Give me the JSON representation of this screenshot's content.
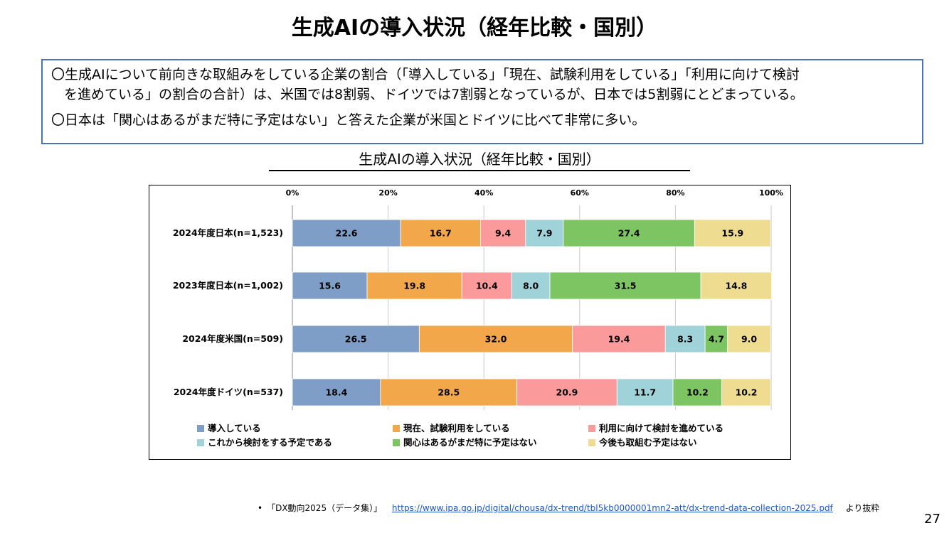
{
  "page": {
    "title": "生成AIの導入状況（経年比較・国別）",
    "page_number": "27"
  },
  "summary": {
    "line1": "〇生成AIについて前向きな取組みをしている企業の割合（「導入している」「現在、試験利用をしている」「利用に向けて検討",
    "line2": "を進めている」の割合の合計）は、米国では8割弱、ドイツでは7割弱となっているが、日本では5割弱にとどまっている。",
    "line3": "〇日本は「関心はあるがまだ特に予定はない」と答えた企業が米国とドイツに比べて非常に多い。"
  },
  "footnote": {
    "prefix": "•　「DX動向2025（データ集）」",
    "link": "https://www.ipa.go.jp/digital/chousa/dx-trend/tbl5kb0000001mn2-att/dx-trend-data-collection-2025.pdf",
    "suffix": "より抜粋"
  },
  "chart_data": {
    "type": "bar",
    "orientation": "horizontal",
    "stacked": true,
    "title": "生成AIの導入状況（経年比較・国別）",
    "xlabel": "",
    "ylabel": "",
    "xlim": [
      0,
      100
    ],
    "x_ticks": [
      "0%",
      "20%",
      "40%",
      "60%",
      "80%",
      "100%"
    ],
    "grid": true,
    "legend_position": "bottom",
    "categories": [
      "2024年度日本(n=1,523)",
      "2023年度日本(n=1,002)",
      "2024年度米国(n=509)",
      "2024年度ドイツ(n=537)"
    ],
    "series": [
      {
        "name": "導入している",
        "color": "#7f9ec7",
        "values": [
          22.6,
          15.6,
          26.5,
          18.4
        ]
      },
      {
        "name": "現在、試験利用をしている",
        "color": "#f3a74b",
        "values": [
          16.7,
          19.8,
          32.0,
          28.5
        ]
      },
      {
        "name": "利用に向けて検討を進めている",
        "color": "#fb9a9a",
        "values": [
          9.4,
          10.4,
          19.4,
          20.9
        ]
      },
      {
        "name": "これから検討をする予定である",
        "color": "#9fd3d9",
        "values": [
          7.9,
          8.0,
          8.3,
          11.7
        ]
      },
      {
        "name": "関心はあるがまだ特に予定はない",
        "color": "#7dc462",
        "values": [
          27.4,
          31.5,
          4.7,
          10.2
        ]
      },
      {
        "name": "今後も取組む予定はない",
        "color": "#eedc91",
        "values": [
          15.9,
          14.8,
          9.0,
          10.2
        ]
      }
    ]
  }
}
